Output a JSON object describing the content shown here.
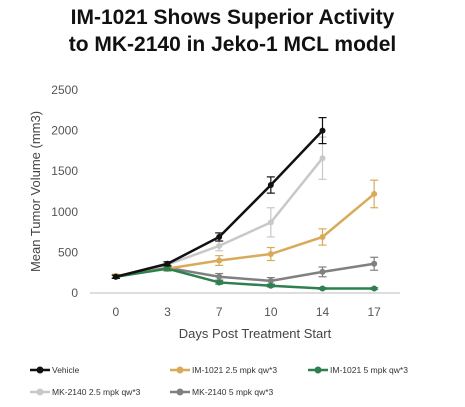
{
  "chart_data": {
    "type": "line",
    "title": [
      "IM-1021 Shows Superior Activity",
      "to MK-2140 in Jeko-1 MCL model"
    ],
    "xlabel": "Days Post Treatment Start",
    "ylabel": "Mean Tumor Volume (mm3)",
    "categories": [
      "0",
      "3",
      "7",
      "10",
      "14",
      "17"
    ],
    "ylim": [
      0,
      2500
    ],
    "yticks": [
      0,
      500,
      1000,
      1500,
      2000,
      2500
    ],
    "grid": false,
    "legend_position": "bottom",
    "series": [
      {
        "name": "Vehicle",
        "color": "#111111",
        "values": [
          200,
          360,
          690,
          1330,
          2000,
          null
        ],
        "errors": [
          20,
          25,
          50,
          100,
          160,
          null
        ]
      },
      {
        "name": "IM-1021 2.5 mpk qw*3",
        "color": "#d9aa5a",
        "values": [
          210,
          300,
          400,
          480,
          690,
          1220
        ],
        "errors": [
          20,
          30,
          60,
          80,
          100,
          170
        ]
      },
      {
        "name": "IM-1021 5 mpk qw*3",
        "color": "#2e8050",
        "values": [
          200,
          300,
          130,
          90,
          55,
          55
        ],
        "errors": [
          20,
          25,
          20,
          15,
          10,
          10
        ]
      },
      {
        "name": "MK-2140 2.5 mpk qw*3",
        "color": "#c8c8c8",
        "values": [
          200,
          350,
          580,
          870,
          1660,
          null
        ],
        "errors": [
          20,
          25,
          60,
          180,
          260,
          null
        ]
      },
      {
        "name": "MK-2140 5 mpk qw*3",
        "color": "#808080",
        "values": [
          200,
          310,
          200,
          150,
          260,
          360
        ],
        "errors": [
          20,
          25,
          40,
          40,
          60,
          80
        ]
      }
    ]
  }
}
